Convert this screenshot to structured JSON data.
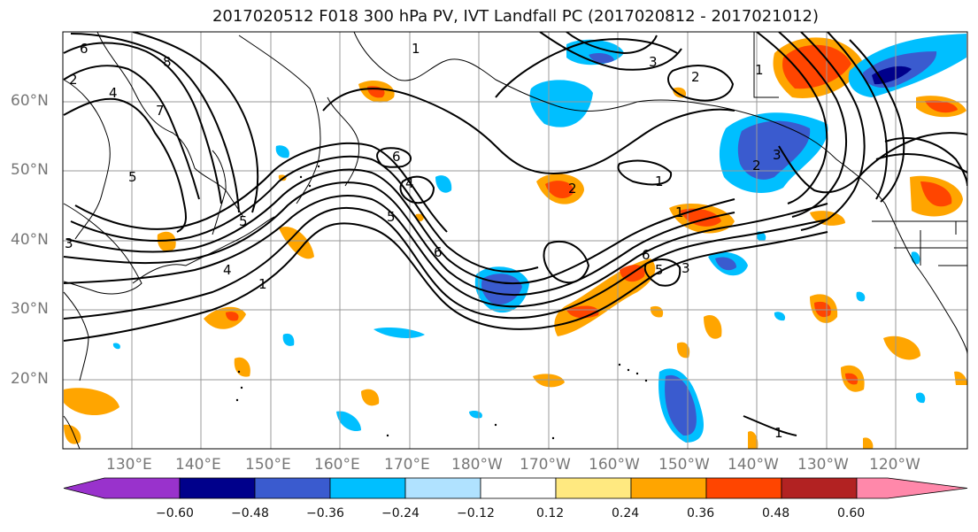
{
  "title": "2017020512 F018 300 hPa PV, IVT Landfall PC (2017020812 - 2017021012)",
  "lat_labels": [
    "60°N",
    "50°N",
    "40°N",
    "30°N",
    "20°N"
  ],
  "lon_labels": [
    "130°E",
    "140°E",
    "150°E",
    "160°E",
    "170°E",
    "180°W",
    "170°W",
    "160°W",
    "150°W",
    "140°W",
    "130°W",
    "120°W"
  ],
  "colorbar": {
    "ticks": [
      "−0.60",
      "−0.48",
      "−0.36",
      "−0.24",
      "−0.12",
      "0.12",
      "0.24",
      "0.36",
      "0.48",
      "0.60"
    ],
    "colors": [
      "#9932cc",
      "#00008b",
      "#3a5bcf",
      "#00bfff",
      "#b0e2ff",
      "#ffffff",
      "#ffe980",
      "#ffa500",
      "#ff4500",
      "#b22222",
      "#ff88aa"
    ]
  },
  "contour_labels": [
    "8",
    "7",
    "6",
    "5",
    "4",
    "3",
    "2",
    "1",
    "6",
    "4",
    "5",
    "6",
    "5",
    "4",
    "1",
    "3",
    "2",
    "1",
    "1",
    "2",
    "3",
    "2",
    "6",
    "5",
    "3",
    "1",
    "1"
  ],
  "colors": {
    "land_line": "#000000",
    "grid": "#999999",
    "pv_contour": "#000000"
  }
}
